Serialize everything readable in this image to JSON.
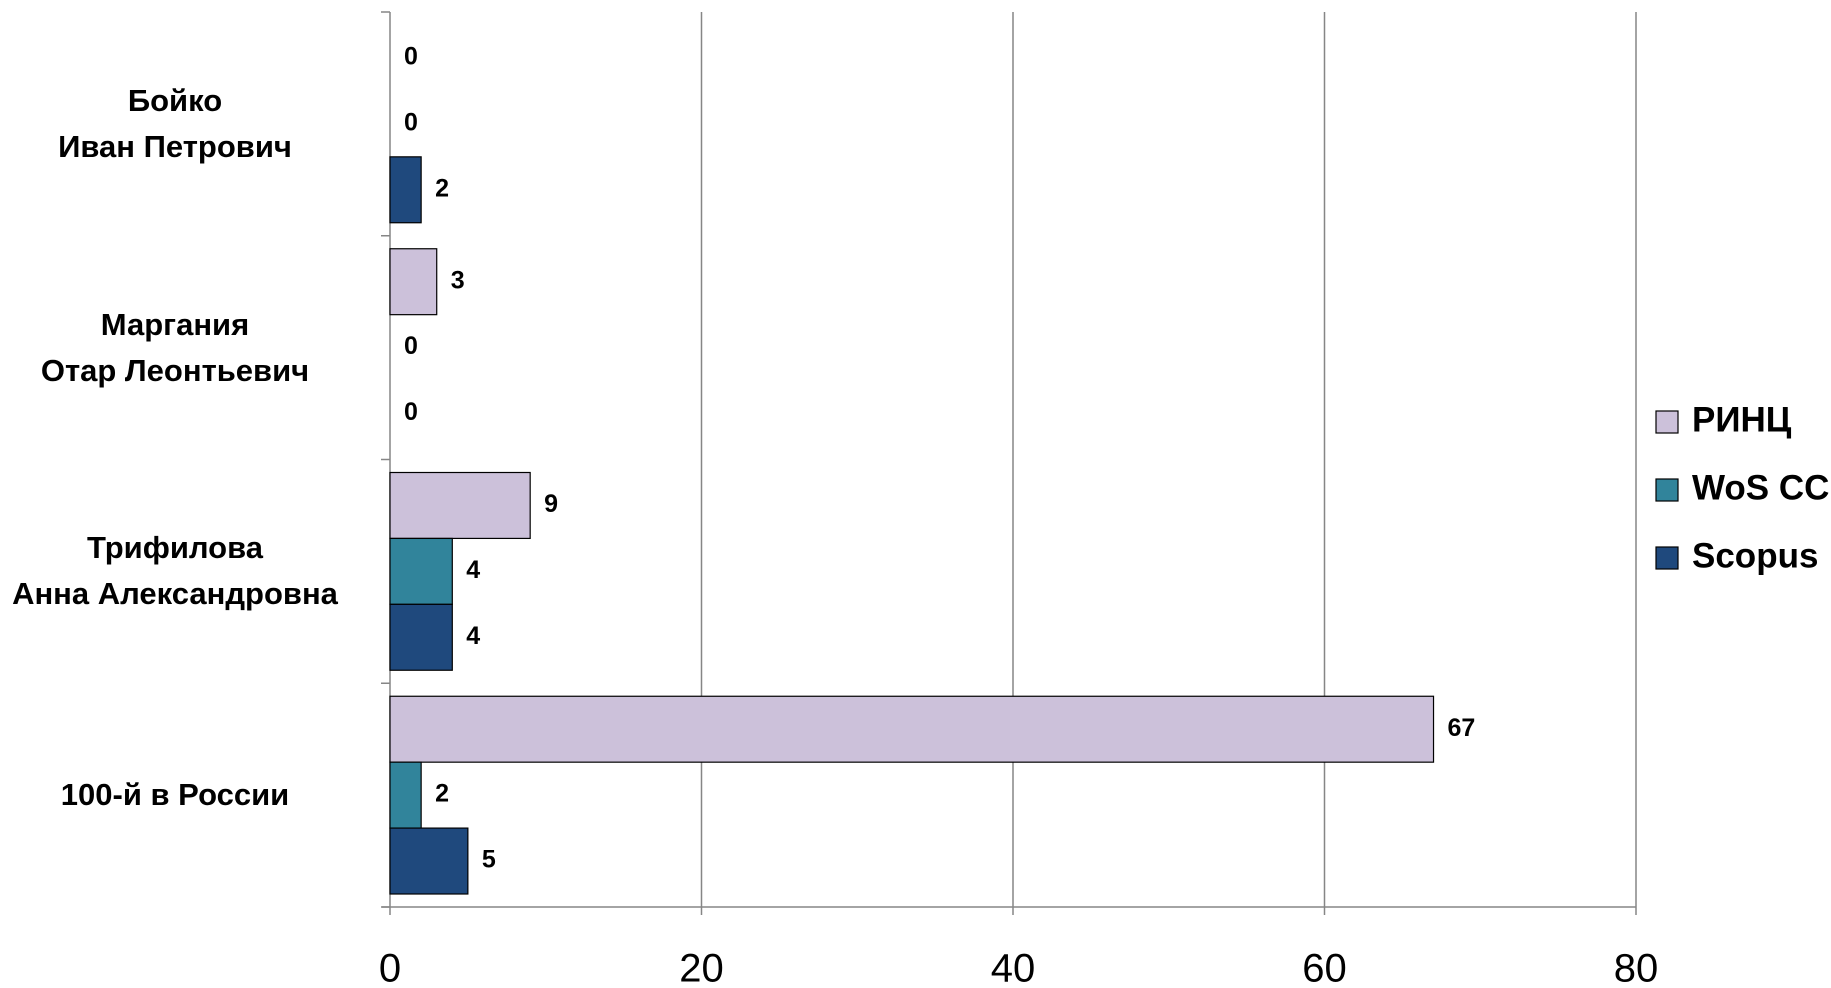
{
  "chart_data": {
    "type": "bar",
    "orientation": "horizontal",
    "categories": [
      "Бойко\nИван Петрович",
      "Маргания\nОтар Леонтьевич",
      "Трифилова\nАнна Александровна",
      "100-й в России"
    ],
    "series": [
      {
        "name": "РИНЦ",
        "color": "#ccc1da",
        "values": [
          0,
          3,
          9,
          67
        ]
      },
      {
        "name": "WoS CC",
        "color": "#31849b",
        "values": [
          0,
          0,
          4,
          2
        ]
      },
      {
        "name": "Scopus",
        "color": "#1f497d",
        "values": [
          2,
          0,
          4,
          5
        ]
      }
    ],
    "xlim": [
      0,
      80
    ],
    "xticks": [
      0,
      20,
      40,
      60,
      80
    ],
    "grid": true,
    "legend": "right"
  }
}
